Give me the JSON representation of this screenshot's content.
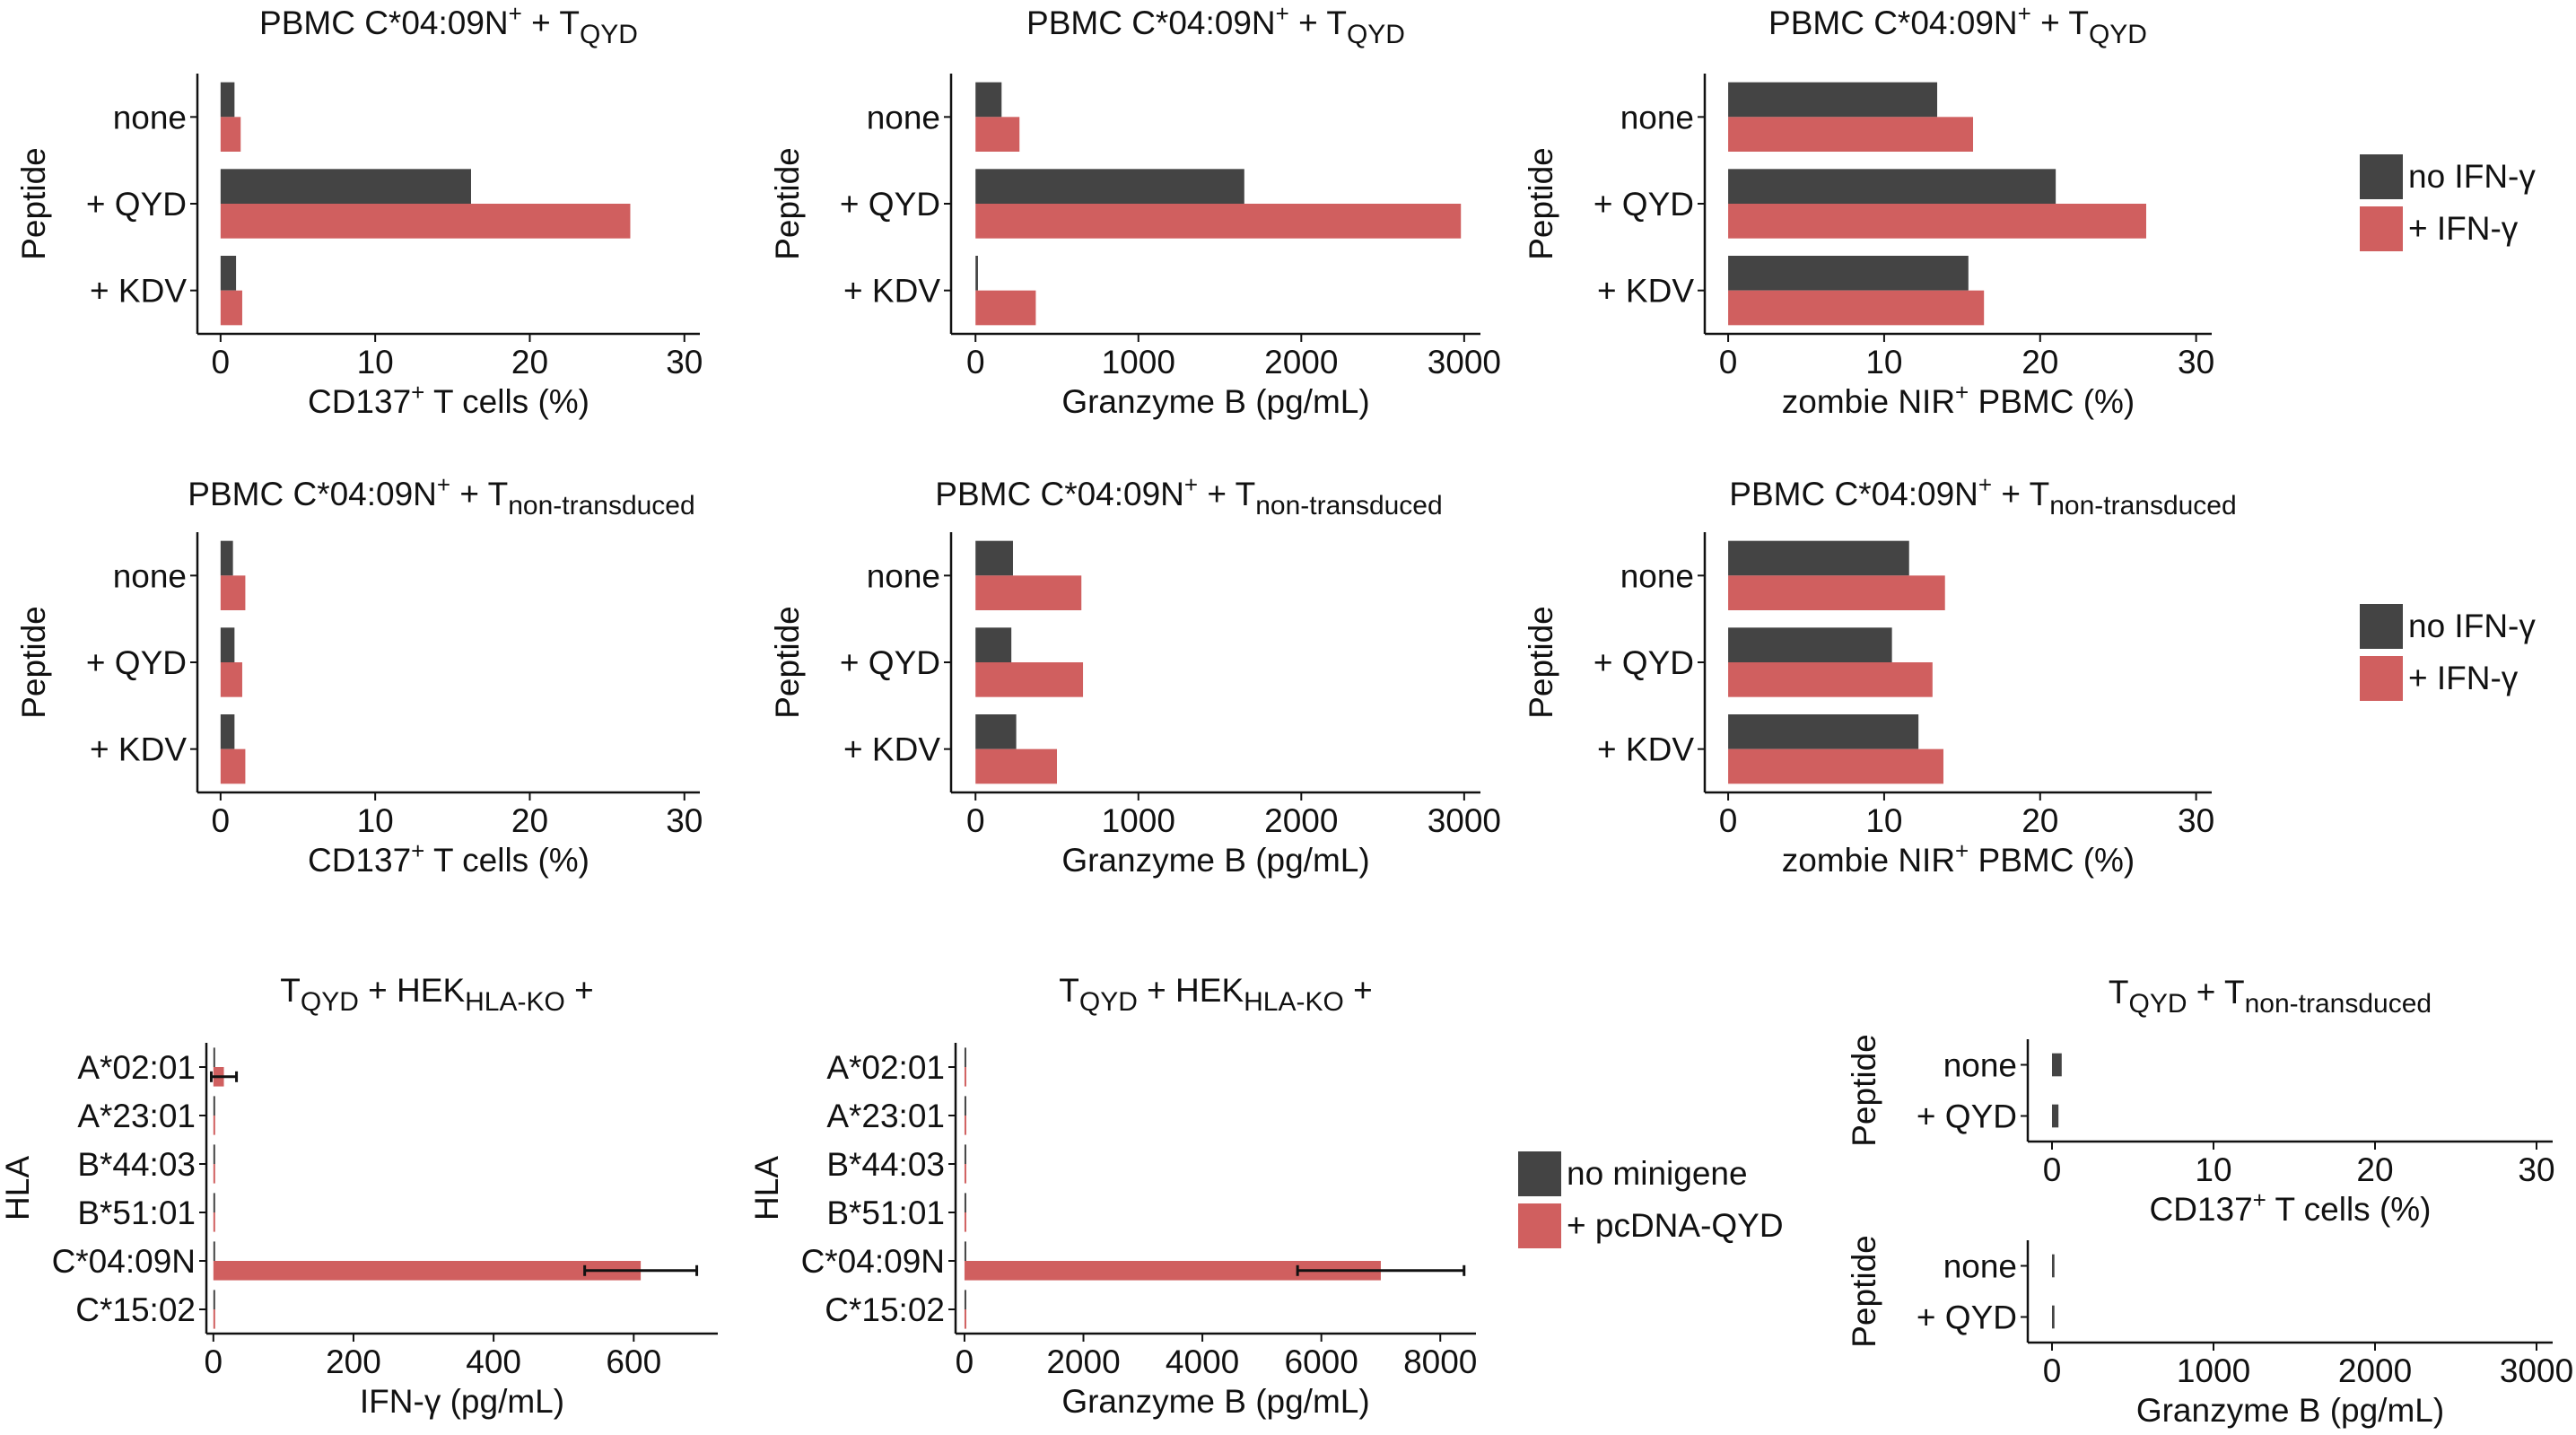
{
  "figure": {
    "legends": [
      {
        "items": [
          {
            "label": "no IFN-γ",
            "color": "#444444"
          },
          {
            "label": "+ IFN-γ",
            "color": "#D05F5F"
          }
        ]
      },
      {
        "items": [
          {
            "label": "no IFN-γ",
            "color": "#444444"
          },
          {
            "label": "+ IFN-γ",
            "color": "#D05F5F"
          }
        ]
      },
      {
        "items": [
          {
            "label": "no minigene",
            "color": "#444444"
          },
          {
            "label": "+ pcDNA-QYD",
            "color": "#D05F5F"
          }
        ]
      }
    ]
  },
  "chart_data": [
    {
      "type": "bar",
      "orientation": "horizontal",
      "title": {
        "main": "PBMC C*04:09N",
        "sup": "+",
        "mid": " + T",
        "sub": "QYD"
      },
      "xlabel": {
        "pre": "CD137",
        "sup": "+",
        "post": " T cells (%)"
      },
      "ylabel": "Peptide",
      "categories": [
        "none",
        "+ QYD",
        "+ KDV"
      ],
      "xlim": [
        -1.5,
        31
      ],
      "xticks": [
        0,
        10,
        20,
        30
      ],
      "series": [
        {
          "name": "no IFN-γ",
          "color": "#444444",
          "values": [
            0.9,
            16.2,
            1.0
          ]
        },
        {
          "name": "+ IFN-γ",
          "color": "#D05F5F",
          "values": [
            1.3,
            26.5,
            1.4
          ]
        }
      ]
    },
    {
      "type": "bar",
      "orientation": "horizontal",
      "title": {
        "main": "PBMC C*04:09N",
        "sup": "+",
        "mid": " + T",
        "sub": "QYD"
      },
      "xlabel": {
        "pre": "Granzyme B (pg/mL)",
        "sup": "",
        "post": ""
      },
      "ylabel": "Peptide",
      "categories": [
        "none",
        "+ QYD",
        "+ KDV"
      ],
      "xlim": [
        -150,
        3100
      ],
      "xticks": [
        0,
        1000,
        2000,
        3000
      ],
      "series": [
        {
          "name": "no IFN-γ",
          "color": "#444444",
          "values": [
            160,
            1650,
            15
          ]
        },
        {
          "name": "+ IFN-γ",
          "color": "#D05F5F",
          "values": [
            270,
            2980,
            370
          ]
        }
      ]
    },
    {
      "type": "bar",
      "orientation": "horizontal",
      "title": {
        "main": "PBMC C*04:09N",
        "sup": "+",
        "mid": " + T",
        "sub": "QYD"
      },
      "xlabel": {
        "pre": "zombie NIR",
        "sup": "+",
        "post": " PBMC (%)"
      },
      "ylabel": "Peptide",
      "categories": [
        "none",
        "+ QYD",
        "+ KDV"
      ],
      "xlim": [
        -1.5,
        31
      ],
      "xticks": [
        0,
        10,
        20,
        30
      ],
      "series": [
        {
          "name": "no IFN-γ",
          "color": "#444444",
          "values": [
            13.4,
            21.0,
            15.4
          ]
        },
        {
          "name": "+ IFN-γ",
          "color": "#D05F5F",
          "values": [
            15.7,
            26.8,
            16.4
          ]
        }
      ]
    },
    {
      "type": "bar",
      "orientation": "horizontal",
      "title": {
        "main": "PBMC C*04:09N",
        "sup": "+",
        "mid": " + T",
        "sub": "non-transduced"
      },
      "xlabel": {
        "pre": "CD137",
        "sup": "+",
        "post": " T cells (%)"
      },
      "ylabel": "Peptide",
      "categories": [
        "none",
        "+ QYD",
        "+ KDV"
      ],
      "xlim": [
        -1.5,
        31
      ],
      "xticks": [
        0,
        10,
        20,
        30
      ],
      "series": [
        {
          "name": "no IFN-γ",
          "color": "#444444",
          "values": [
            0.8,
            0.9,
            0.9
          ]
        },
        {
          "name": "+ IFN-γ",
          "color": "#D05F5F",
          "values": [
            1.6,
            1.4,
            1.6
          ]
        }
      ]
    },
    {
      "type": "bar",
      "orientation": "horizontal",
      "title": {
        "main": "PBMC C*04:09N",
        "sup": "+",
        "mid": " + T",
        "sub": "non-transduced"
      },
      "xlabel": {
        "pre": "Granzyme B (pg/mL)",
        "sup": "",
        "post": ""
      },
      "ylabel": "Peptide",
      "categories": [
        "none",
        "+ QYD",
        "+ KDV"
      ],
      "xlim": [
        -150,
        3100
      ],
      "xticks": [
        0,
        1000,
        2000,
        3000
      ],
      "series": [
        {
          "name": "no IFN-γ",
          "color": "#444444",
          "values": [
            230,
            220,
            250
          ]
        },
        {
          "name": "+ IFN-γ",
          "color": "#D05F5F",
          "values": [
            650,
            660,
            500
          ]
        }
      ]
    },
    {
      "type": "bar",
      "orientation": "horizontal",
      "title": {
        "main": "PBMC C*04:09N",
        "sup": "+",
        "mid": " + T",
        "sub": "non-transduced"
      },
      "xlabel": {
        "pre": "zombie NIR",
        "sup": "+",
        "post": " PBMC (%)"
      },
      "ylabel": "Peptide",
      "categories": [
        "none",
        "+ QYD",
        "+ KDV"
      ],
      "xlim": [
        -1.5,
        31
      ],
      "xticks": [
        0,
        10,
        20,
        30
      ],
      "series": [
        {
          "name": "no IFN-γ",
          "color": "#444444",
          "values": [
            11.6,
            10.5,
            12.2
          ]
        },
        {
          "name": "+ IFN-γ",
          "color": "#D05F5F",
          "values": [
            13.9,
            13.1,
            13.8
          ]
        }
      ]
    },
    {
      "type": "bar",
      "orientation": "horizontal",
      "title": {
        "t1": "T",
        "s1": "QYD",
        "t2": " + HEK",
        "s2": "HLA-KO",
        "t3": " +"
      },
      "xlabel": {
        "pre": "IFN-γ (pg/mL)",
        "sup": "",
        "post": ""
      },
      "ylabel": "HLA",
      "categories": [
        "A*02:01",
        "A*23:01",
        "B*44:03",
        "B*51:01",
        "C*04:09N",
        "C*15:02"
      ],
      "xlim": [
        -10,
        720
      ],
      "xticks": [
        0,
        200,
        400,
        600
      ],
      "series": [
        {
          "name": "no minigene",
          "color": "#444444",
          "values": [
            1,
            0.5,
            0.5,
            0.5,
            1,
            0.5
          ]
        },
        {
          "name": "+ pcDNA-QYD",
          "color": "#D05F5F",
          "values": [
            15,
            0.5,
            0.5,
            0.5,
            610,
            0.5
          ],
          "errors": [
            18,
            0,
            0,
            0,
            80,
            0
          ]
        }
      ]
    },
    {
      "type": "bar",
      "orientation": "horizontal",
      "title": {
        "t1": "T",
        "s1": "QYD",
        "t2": " + HEK",
        "s2": "HLA-KO",
        "t3": " +"
      },
      "xlabel": {
        "pre": "Granzyme B (pg/mL)",
        "sup": "",
        "post": ""
      },
      "ylabel": "HLA",
      "categories": [
        "A*02:01",
        "A*23:01",
        "B*44:03",
        "B*51:01",
        "C*04:09N",
        "C*15:02"
      ],
      "xlim": [
        -150,
        8600
      ],
      "xticks": [
        0,
        2000,
        4000,
        6000,
        8000
      ],
      "series": [
        {
          "name": "no minigene",
          "color": "#444444",
          "values": [
            10,
            10,
            10,
            10,
            10,
            10
          ]
        },
        {
          "name": "+ pcDNA-QYD",
          "color": "#D05F5F",
          "values": [
            10,
            10,
            10,
            10,
            7000,
            10
          ],
          "errors": [
            0,
            0,
            0,
            0,
            1400,
            0
          ]
        }
      ]
    },
    {
      "type": "bar",
      "orientation": "horizontal",
      "title": {
        "t1": "T",
        "s1": "QYD",
        "t2": " + T",
        "s2": "non-transduced",
        "t3": ""
      },
      "xlabel": {
        "pre": "CD137",
        "sup": "+",
        "post": " T cells (%)"
      },
      "ylabel": "Peptide",
      "categories": [
        "none",
        "+ QYD"
      ],
      "xlim": [
        -1.5,
        31
      ],
      "xticks": [
        0,
        10,
        20,
        30
      ],
      "series": [
        {
          "name": "no IFN-γ",
          "color": "#444444",
          "values": [
            0.6,
            0.4
          ]
        }
      ]
    },
    {
      "type": "bar",
      "orientation": "horizontal",
      "title": null,
      "xlabel": {
        "pre": "Granzyme B (pg/mL)",
        "sup": "",
        "post": ""
      },
      "ylabel": "Peptide",
      "categories": [
        "none",
        "+ QYD"
      ],
      "xlim": [
        -150,
        3100
      ],
      "xticks": [
        0,
        1000,
        2000,
        3000
      ],
      "series": [
        {
          "name": "no IFN-γ",
          "color": "#444444",
          "values": [
            15,
            15
          ]
        }
      ]
    }
  ]
}
